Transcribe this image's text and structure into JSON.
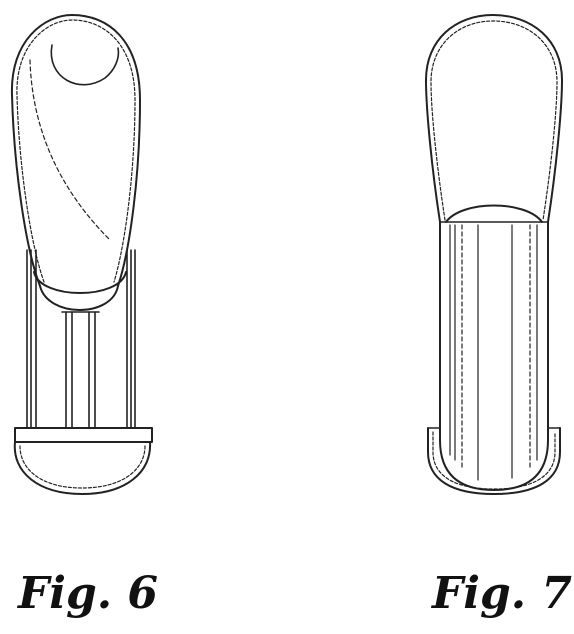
{
  "figures": [
    {
      "label": "Fig. 6"
    },
    {
      "label": "Fig. 7"
    }
  ],
  "colors": {
    "line": "#222222",
    "background": "#ffffff"
  }
}
